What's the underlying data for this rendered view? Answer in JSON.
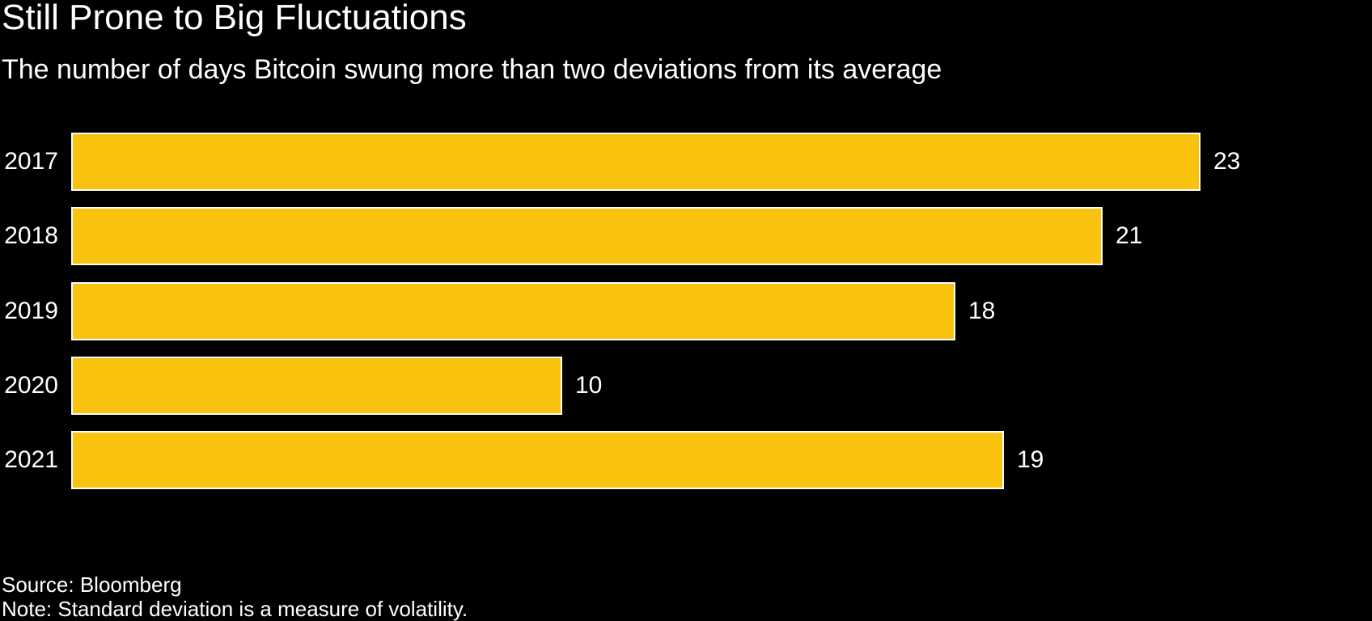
{
  "header": {
    "title": "Still Prone to Big Fluctuations",
    "subtitle": "The number of days Bitcoin swung more than two deviations from its average"
  },
  "chart_data": {
    "type": "bar",
    "orientation": "horizontal",
    "title": "Still Prone to Big Fluctuations",
    "subtitle": "The number of days Bitcoin swung more than two deviations from its average",
    "categories": [
      "2017",
      "2018",
      "2019",
      "2020",
      "2021"
    ],
    "values": [
      23,
      21,
      18,
      10,
      19
    ],
    "value_labels": [
      "23",
      "21",
      "18",
      "10",
      "19"
    ],
    "xlabel": "",
    "ylabel": "",
    "xlim": [
      0,
      23
    ],
    "grid": false,
    "legend": null,
    "bar_color": "#F9C20E",
    "bar_border_color": "#FFFFFF",
    "label_color": "#FFFFFF",
    "background_color": "#000000"
  },
  "footer": {
    "source": "Source: Bloomberg",
    "note": "Note: Standard deviation is a measure of volatility."
  },
  "colors": {
    "background": "#000000",
    "text": "#FFFFFF",
    "bar": "#F9C20E"
  }
}
